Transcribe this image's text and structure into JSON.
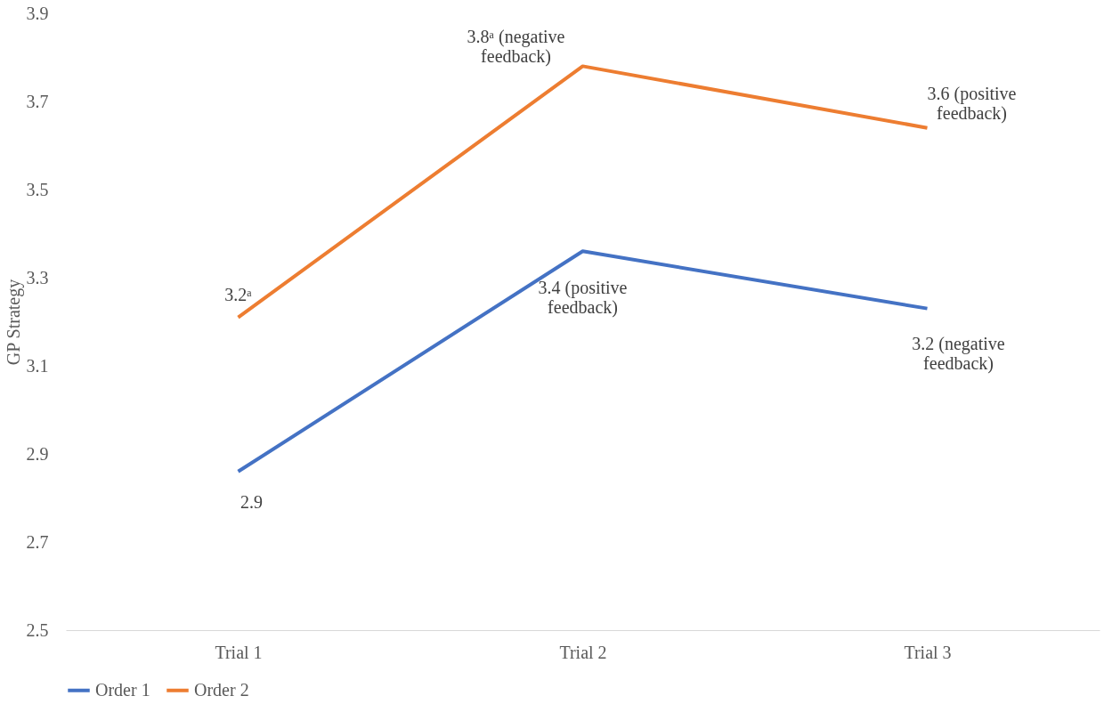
{
  "chart_data": {
    "type": "line",
    "ylabel": "GP Strategy",
    "categories": [
      "Trial 1",
      "Trial 2",
      "Trial 3"
    ],
    "series": [
      {
        "name": "Order 1",
        "color": "#4472c4",
        "values": [
          2.86,
          3.36,
          3.23
        ],
        "value_labels": [
          "2.9",
          "3.4 (positive feedback)",
          "3.2 (negative feedback)"
        ]
      },
      {
        "name": "Order 2",
        "color": "#ed7d31",
        "values": [
          3.21,
          3.78,
          3.64
        ],
        "value_labels": [
          "3.2ᵃ",
          "3.8ᵃ (negative feedback)",
          "3.6 (positive feedback)"
        ]
      }
    ],
    "ylim": [
      2.5,
      3.9
    ],
    "yticks": [
      2.5,
      2.7,
      2.9,
      3.1,
      3.3,
      3.5,
      3.7,
      3.9
    ],
    "grid": false,
    "legend": "bottom",
    "marker": "none",
    "line_style": "solid"
  }
}
